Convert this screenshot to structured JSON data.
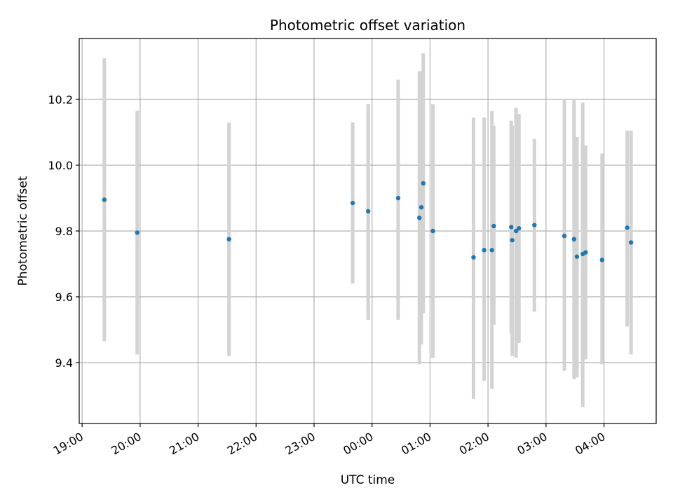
{
  "chart_data": {
    "type": "scatter",
    "title": "Photometric offset variation",
    "xlabel": "UTC time",
    "ylabel": "Photometric offset",
    "x_tick_labels": [
      "19:00",
      "20:00",
      "21:00",
      "22:00",
      "23:00",
      "00:00",
      "01:00",
      "02:00",
      "03:00",
      "04:00"
    ],
    "x_tick_hours": [
      0,
      1,
      2,
      3,
      4,
      5,
      6,
      7,
      8,
      9
    ],
    "xlim_hours": [
      -0.05,
      9.9
    ],
    "y_tick_labels": [
      "9.4",
      "9.6",
      "9.8",
      "10.0",
      "10.2"
    ],
    "y_ticks": [
      9.4,
      9.6,
      9.8,
      10.0,
      10.2
    ],
    "ylim": [
      9.215,
      10.385
    ],
    "grid": true,
    "marker_color": "#1f77b4",
    "errorbar_color": "#d3d3d3",
    "points": [
      {
        "x": "19:23",
        "y": 9.895,
        "lo": 9.465,
        "hi": 10.325
      },
      {
        "x": "19:57",
        "y": 9.795,
        "lo": 9.425,
        "hi": 10.165
      },
      {
        "x": "21:32",
        "y": 9.775,
        "lo": 9.42,
        "hi": 10.13
      },
      {
        "x": "23:40",
        "y": 9.885,
        "lo": 9.64,
        "hi": 10.13
      },
      {
        "x": "23:56",
        "y": 9.86,
        "lo": 9.53,
        "hi": 10.185
      },
      {
        "x": "00:27",
        "y": 9.9,
        "lo": 9.53,
        "hi": 10.26
      },
      {
        "x": "00:49",
        "y": 9.84,
        "lo": 9.395,
        "hi": 10.285
      },
      {
        "x": "00:51",
        "y": 9.872,
        "lo": 9.455,
        "hi": 10.285
      },
      {
        "x": "00:53",
        "y": 9.945,
        "lo": 9.55,
        "hi": 10.34
      },
      {
        "x": "01:03",
        "y": 9.8,
        "lo": 9.415,
        "hi": 10.185
      },
      {
        "x": "01:45",
        "y": 9.72,
        "lo": 9.29,
        "hi": 10.145
      },
      {
        "x": "01:56",
        "y": 9.742,
        "lo": 9.345,
        "hi": 10.145
      },
      {
        "x": "02:04",
        "y": 9.742,
        "lo": 9.32,
        "hi": 10.165
      },
      {
        "x": "02:06",
        "y": 9.815,
        "lo": 9.515,
        "hi": 10.12
      },
      {
        "x": "02:24",
        "y": 9.812,
        "lo": 9.49,
        "hi": 10.135
      },
      {
        "x": "02:25",
        "y": 9.772,
        "lo": 9.42,
        "hi": 10.12
      },
      {
        "x": "02:29",
        "y": 9.8,
        "lo": 9.415,
        "hi": 10.175
      },
      {
        "x": "02:32",
        "y": 9.808,
        "lo": 9.46,
        "hi": 10.155
      },
      {
        "x": "02:48",
        "y": 9.818,
        "lo": 9.555,
        "hi": 10.08
      },
      {
        "x": "03:19",
        "y": 9.785,
        "lo": 9.375,
        "hi": 10.2
      },
      {
        "x": "03:29",
        "y": 9.775,
        "lo": 9.35,
        "hi": 10.2
      },
      {
        "x": "03:32",
        "y": 9.722,
        "lo": 9.355,
        "hi": 10.085
      },
      {
        "x": "03:38",
        "y": 9.73,
        "lo": 9.265,
        "hi": 10.19
      },
      {
        "x": "03:41",
        "y": 9.735,
        "lo": 9.41,
        "hi": 10.06
      },
      {
        "x": "03:58",
        "y": 9.712,
        "lo": 9.395,
        "hi": 10.035
      },
      {
        "x": "04:24",
        "y": 9.81,
        "lo": 9.51,
        "hi": 10.105
      },
      {
        "x": "04:28",
        "y": 9.765,
        "lo": 9.425,
        "hi": 10.105
      }
    ]
  }
}
